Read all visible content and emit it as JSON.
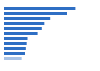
{
  "chart_data": {
    "type": "bar",
    "orientation": "horizontal",
    "categories": [
      null,
      null,
      null,
      null,
      null,
      null,
      null,
      null,
      null,
      null,
      null
    ],
    "values": [
      85,
      75,
      55,
      48,
      45,
      40,
      28,
      27,
      26,
      25,
      21
    ],
    "colors": [
      "#2f6fc4",
      "#2f6fc4",
      "#2f6fc4",
      "#2f6fc4",
      "#2f6fc4",
      "#2f6fc4",
      "#2f6fc4",
      "#2f6fc4",
      "#2f6fc4",
      "#2f6fc4",
      "#a9c3e6"
    ],
    "xlim": [
      0,
      100
    ],
    "xticks": [],
    "grid": false,
    "tick_labels": false
  }
}
